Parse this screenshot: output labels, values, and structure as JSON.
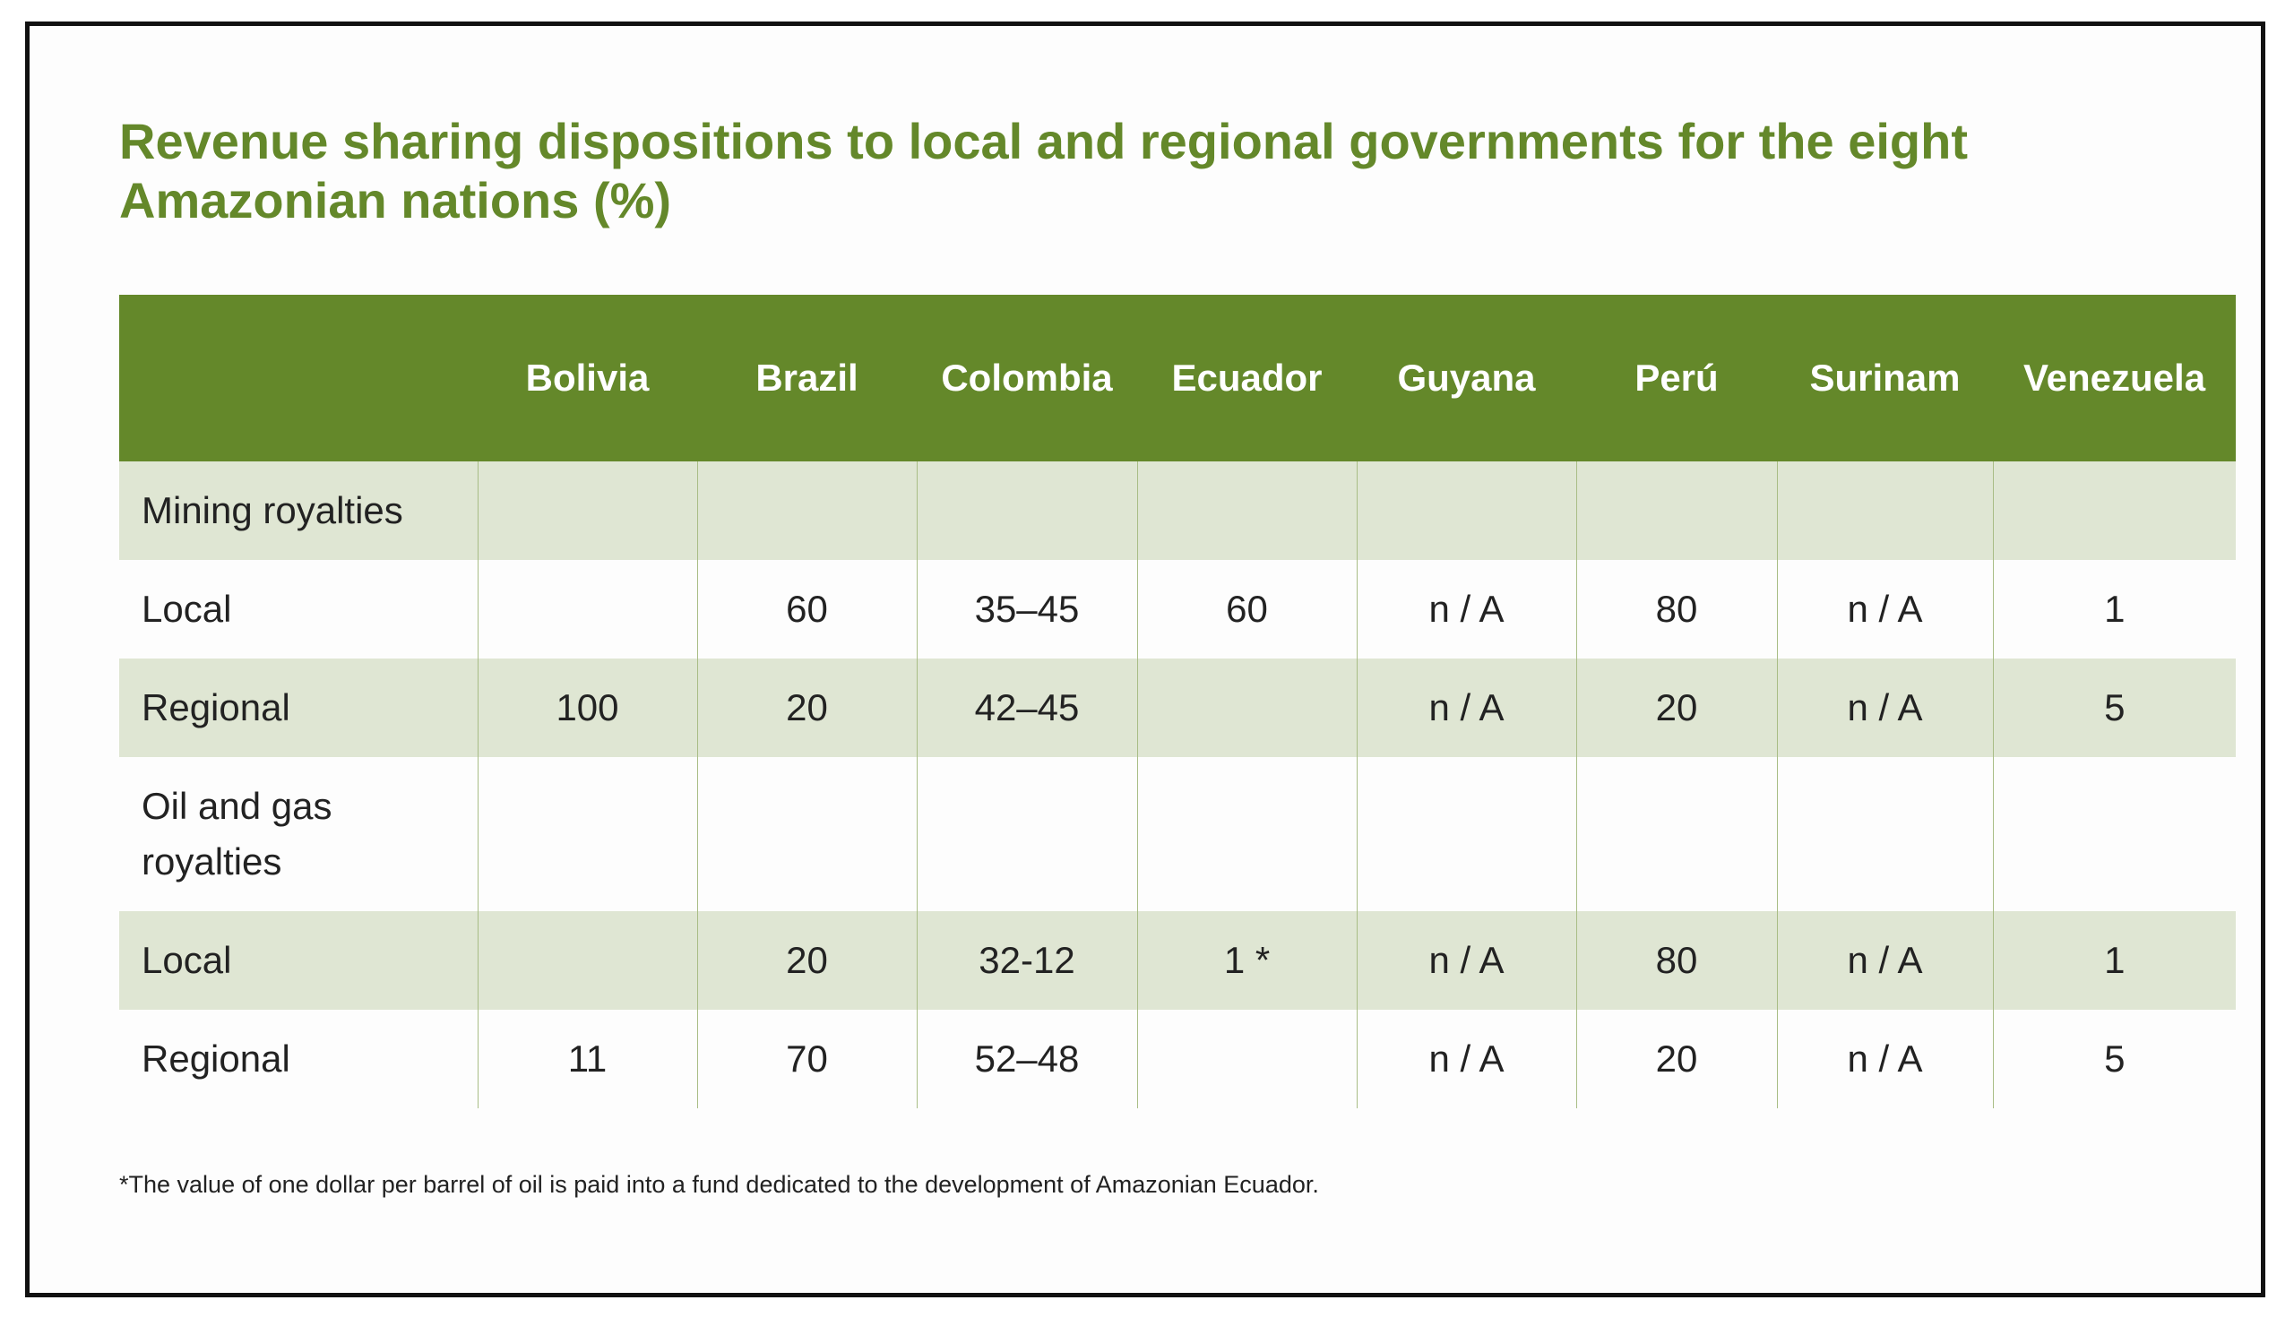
{
  "chart_data": {
    "type": "table",
    "title": "Revenue sharing dispositions to local and regional governments for the eight Amazonian nations (%)",
    "columns": [
      "",
      "Bolivia",
      "Brazil",
      "Colombia",
      "Ecuador",
      "Guyana",
      "Perú",
      "Surinam",
      "Venezuela"
    ],
    "rows": [
      {
        "label": "Mining royalties",
        "cells": [
          "",
          "",
          "",
          "",
          "",
          "",
          "",
          ""
        ],
        "shaded": true
      },
      {
        "label": "Local",
        "cells": [
          "",
          "60",
          "35–45",
          "60",
          "n / A",
          "80",
          "n / A",
          "1"
        ],
        "shaded": false
      },
      {
        "label": "Regional",
        "cells": [
          "100",
          "20",
          "42–45",
          "",
          "n / A",
          "20",
          "n / A",
          "5"
        ],
        "shaded": true
      },
      {
        "label": "Oil and gas royalties",
        "cells": [
          "",
          "",
          "",
          "",
          "",
          "",
          "",
          ""
        ],
        "shaded": false
      },
      {
        "label": "Local",
        "cells": [
          "",
          "20",
          "32-12",
          "1 *",
          "n / A",
          "80",
          "n / A",
          "1"
        ],
        "shaded": true
      },
      {
        "label": "Regional",
        "cells": [
          "11",
          "70",
          "52–48",
          "",
          "n / A",
          "20",
          "n / A",
          "5"
        ],
        "shaded": false
      }
    ],
    "footnote": "*The value of one dollar per barrel of oil is paid into a fund dedicated to the development of Amazonian Ecuador."
  },
  "colors": {
    "accent_green": "#64882a",
    "shaded_row": "#dfe6d3",
    "header_text": "#ffffff"
  }
}
